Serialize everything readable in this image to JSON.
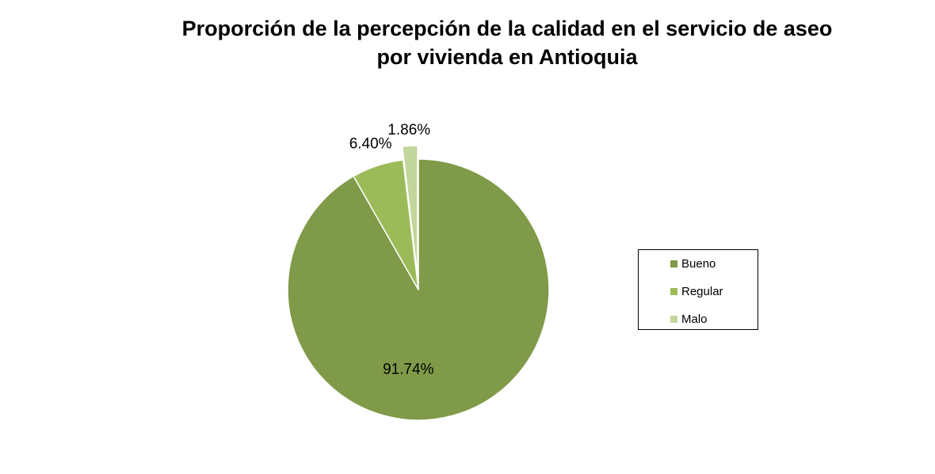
{
  "title_line1": "Proporción de la percepción de la calidad en el servicio de aseo",
  "title_line2": "por vivienda en Antioquia",
  "chart_data": {
    "type": "pie",
    "title": "Proporción de la percepción de la calidad en el servicio de aseo por vivienda en Antioquia",
    "slices": [
      {
        "name": "Bueno",
        "value": 91.74,
        "label": "91.74%",
        "color": "#7f9a48",
        "exploded": false
      },
      {
        "name": "Regular",
        "value": 6.4,
        "label": "6.40%",
        "color": "#9bbb59",
        "exploded": false
      },
      {
        "name": "Malo",
        "value": 1.86,
        "label": "1.86%",
        "color": "#c3d69b",
        "exploded": true
      }
    ],
    "legend_position": "right",
    "start_angle": "12 o'clock, clockwise"
  }
}
